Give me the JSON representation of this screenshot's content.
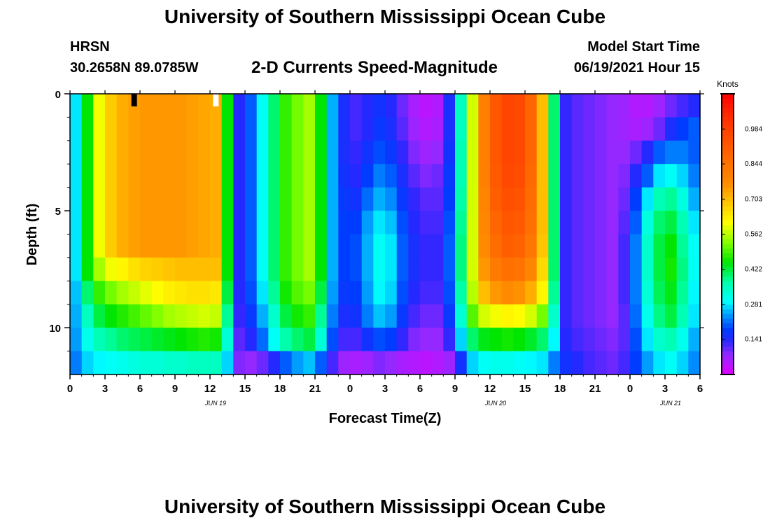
{
  "header": {
    "title": "University of Southern Mississippi Ocean Cube",
    "station": "HRSN",
    "coords": "30.2658N  89.0785W",
    "subtitle": "2-D Currents Speed-Magnitude",
    "model_start_label": "Model Start Time",
    "model_start_value": "06/19/2021 Hour 15"
  },
  "footer": {
    "title": "University of Southern Mississippi Ocean Cube"
  },
  "chart_data": {
    "type": "heatmap",
    "title": "2-D Currents Speed-Magnitude",
    "xlabel": "Forecast Time(Z)",
    "ylabel": "Depth (ft)",
    "x_range": [
      0,
      54
    ],
    "y_range": [
      0,
      12
    ],
    "x_ticks": [
      0,
      3,
      6,
      9,
      12,
      15,
      18,
      21,
      24,
      27,
      30,
      33,
      36,
      39,
      42,
      45,
      48,
      51,
      54
    ],
    "x_tick_labels": [
      "0",
      "3",
      "6",
      "9",
      "12",
      "15",
      "18",
      "21",
      "0",
      "3",
      "6",
      "9",
      "12",
      "15",
      "18",
      "21",
      "0",
      "3",
      "6"
    ],
    "y_ticks": [
      0,
      5,
      10
    ],
    "y_tick_labels": [
      "0",
      "5",
      "10"
    ],
    "date_labels": [
      {
        "hour": 12,
        "text": "JUN 19"
      },
      {
        "hour": 36,
        "text": "JUN 20"
      },
      {
        "hour": 51,
        "text": "JUN 21"
      }
    ],
    "colorbar": {
      "title": "Knots",
      "min": 0.0,
      "max": 1.125,
      "ticks": [
        0.141,
        0.281,
        0.422,
        0.562,
        0.703,
        0.844,
        0.984
      ],
      "tick_labels": [
        "0.141",
        "0.281",
        "0.422",
        "0.562",
        "0.703",
        "0.844",
        "0.984"
      ]
    },
    "depth_levels_ft": [
      0.5,
      1.5,
      2.5,
      3.5,
      4.5,
      5.5,
      6.5,
      7.5,
      8.5,
      9.5,
      10.5,
      11.5
    ],
    "time_hours": [
      0,
      1,
      2,
      3,
      4,
      5,
      6,
      7,
      8,
      9,
      10,
      11,
      12,
      13,
      14,
      15,
      16,
      17,
      18,
      19,
      20,
      21,
      22,
      23,
      24,
      25,
      26,
      27,
      28,
      29,
      30,
      31,
      32,
      33,
      34,
      35,
      36,
      37,
      38,
      39,
      40,
      41,
      42,
      43,
      44,
      45,
      46,
      47,
      48,
      49,
      50,
      51,
      52,
      53
    ],
    "speed_knots": [
      [
        0.28,
        0.45,
        0.6,
        0.68,
        0.72,
        0.74,
        0.75,
        0.75,
        0.75,
        0.75,
        0.74,
        0.73,
        0.72,
        0.45,
        0.14,
        0.2,
        0.3,
        0.4,
        0.48,
        0.52,
        0.55,
        0.45,
        0.25,
        0.15,
        0.12,
        0.14,
        0.16,
        0.14,
        0.1,
        0.06,
        0.04,
        0.05,
        0.15,
        0.35,
        0.58,
        0.8,
        0.92,
        0.97,
        0.96,
        0.88,
        0.7,
        0.4,
        0.13,
        0.11,
        0.1,
        0.09,
        0.08,
        0.07,
        0.05,
        0.05,
        0.07,
        0.1,
        0.12,
        0.14
      ],
      [
        0.28,
        0.45,
        0.6,
        0.68,
        0.72,
        0.74,
        0.75,
        0.75,
        0.75,
        0.75,
        0.74,
        0.73,
        0.72,
        0.45,
        0.14,
        0.2,
        0.3,
        0.4,
        0.48,
        0.52,
        0.55,
        0.45,
        0.25,
        0.15,
        0.12,
        0.14,
        0.17,
        0.15,
        0.11,
        0.07,
        0.05,
        0.06,
        0.15,
        0.35,
        0.58,
        0.8,
        0.92,
        0.97,
        0.96,
        0.88,
        0.7,
        0.4,
        0.13,
        0.11,
        0.1,
        0.09,
        0.08,
        0.07,
        0.06,
        0.07,
        0.1,
        0.15,
        0.18,
        0.2
      ],
      [
        0.28,
        0.45,
        0.6,
        0.68,
        0.72,
        0.74,
        0.75,
        0.75,
        0.75,
        0.75,
        0.74,
        0.73,
        0.72,
        0.45,
        0.14,
        0.2,
        0.3,
        0.4,
        0.48,
        0.52,
        0.55,
        0.45,
        0.25,
        0.15,
        0.13,
        0.16,
        0.19,
        0.17,
        0.13,
        0.09,
        0.07,
        0.08,
        0.16,
        0.36,
        0.58,
        0.8,
        0.92,
        0.97,
        0.96,
        0.88,
        0.7,
        0.4,
        0.13,
        0.11,
        0.1,
        0.09,
        0.08,
        0.08,
        0.1,
        0.14,
        0.2,
        0.22,
        0.22,
        0.2
      ],
      [
        0.28,
        0.45,
        0.6,
        0.68,
        0.72,
        0.74,
        0.75,
        0.75,
        0.75,
        0.75,
        0.74,
        0.73,
        0.72,
        0.45,
        0.14,
        0.2,
        0.3,
        0.4,
        0.48,
        0.52,
        0.55,
        0.45,
        0.25,
        0.16,
        0.14,
        0.18,
        0.22,
        0.2,
        0.15,
        0.11,
        0.09,
        0.1,
        0.17,
        0.36,
        0.58,
        0.8,
        0.91,
        0.96,
        0.95,
        0.87,
        0.7,
        0.4,
        0.13,
        0.11,
        0.1,
        0.09,
        0.08,
        0.09,
        0.14,
        0.2,
        0.28,
        0.3,
        0.27,
        0.22
      ],
      [
        0.28,
        0.45,
        0.6,
        0.68,
        0.72,
        0.74,
        0.75,
        0.75,
        0.75,
        0.75,
        0.74,
        0.73,
        0.72,
        0.45,
        0.14,
        0.2,
        0.3,
        0.4,
        0.48,
        0.52,
        0.55,
        0.45,
        0.25,
        0.17,
        0.16,
        0.21,
        0.25,
        0.23,
        0.17,
        0.13,
        0.11,
        0.11,
        0.18,
        0.37,
        0.58,
        0.79,
        0.9,
        0.94,
        0.93,
        0.86,
        0.7,
        0.4,
        0.13,
        0.11,
        0.1,
        0.09,
        0.08,
        0.1,
        0.18,
        0.28,
        0.36,
        0.38,
        0.32,
        0.25
      ],
      [
        0.28,
        0.45,
        0.6,
        0.68,
        0.72,
        0.74,
        0.75,
        0.75,
        0.75,
        0.75,
        0.74,
        0.73,
        0.72,
        0.45,
        0.14,
        0.2,
        0.3,
        0.4,
        0.48,
        0.52,
        0.55,
        0.45,
        0.25,
        0.18,
        0.18,
        0.24,
        0.28,
        0.26,
        0.19,
        0.14,
        0.12,
        0.12,
        0.19,
        0.38,
        0.58,
        0.78,
        0.88,
        0.92,
        0.91,
        0.85,
        0.7,
        0.4,
        0.13,
        0.11,
        0.1,
        0.09,
        0.08,
        0.11,
        0.2,
        0.32,
        0.4,
        0.42,
        0.36,
        0.28
      ],
      [
        0.28,
        0.45,
        0.6,
        0.68,
        0.72,
        0.74,
        0.75,
        0.75,
        0.75,
        0.75,
        0.74,
        0.73,
        0.72,
        0.45,
        0.14,
        0.2,
        0.3,
        0.4,
        0.48,
        0.52,
        0.55,
        0.45,
        0.25,
        0.18,
        0.19,
        0.25,
        0.3,
        0.28,
        0.2,
        0.15,
        0.13,
        0.13,
        0.2,
        0.39,
        0.58,
        0.77,
        0.86,
        0.9,
        0.89,
        0.83,
        0.69,
        0.4,
        0.13,
        0.11,
        0.1,
        0.09,
        0.08,
        0.12,
        0.22,
        0.34,
        0.42,
        0.45,
        0.38,
        0.3
      ],
      [
        0.28,
        0.45,
        0.55,
        0.6,
        0.62,
        0.65,
        0.67,
        0.68,
        0.69,
        0.7,
        0.7,
        0.7,
        0.7,
        0.45,
        0.14,
        0.2,
        0.3,
        0.4,
        0.48,
        0.52,
        0.55,
        0.45,
        0.25,
        0.18,
        0.19,
        0.25,
        0.3,
        0.28,
        0.2,
        0.15,
        0.13,
        0.13,
        0.2,
        0.39,
        0.58,
        0.75,
        0.82,
        0.85,
        0.84,
        0.79,
        0.66,
        0.4,
        0.13,
        0.11,
        0.1,
        0.09,
        0.08,
        0.12,
        0.22,
        0.34,
        0.42,
        0.46,
        0.39,
        0.3
      ],
      [
        0.26,
        0.4,
        0.48,
        0.52,
        0.55,
        0.57,
        0.59,
        0.61,
        0.63,
        0.64,
        0.65,
        0.65,
        0.64,
        0.42,
        0.14,
        0.19,
        0.28,
        0.38,
        0.46,
        0.5,
        0.52,
        0.42,
        0.24,
        0.17,
        0.18,
        0.24,
        0.29,
        0.27,
        0.19,
        0.14,
        0.12,
        0.12,
        0.19,
        0.37,
        0.56,
        0.7,
        0.75,
        0.77,
        0.76,
        0.72,
        0.62,
        0.38,
        0.13,
        0.11,
        0.1,
        0.09,
        0.08,
        0.12,
        0.22,
        0.33,
        0.41,
        0.44,
        0.38,
        0.29
      ],
      [
        0.25,
        0.35,
        0.42,
        0.45,
        0.47,
        0.49,
        0.51,
        0.53,
        0.55,
        0.56,
        0.57,
        0.58,
        0.57,
        0.38,
        0.13,
        0.17,
        0.25,
        0.34,
        0.42,
        0.46,
        0.48,
        0.38,
        0.22,
        0.15,
        0.16,
        0.22,
        0.26,
        0.24,
        0.17,
        0.12,
        0.1,
        0.1,
        0.17,
        0.33,
        0.5,
        0.58,
        0.6,
        0.62,
        0.61,
        0.58,
        0.52,
        0.34,
        0.13,
        0.11,
        0.1,
        0.09,
        0.08,
        0.11,
        0.21,
        0.31,
        0.39,
        0.42,
        0.36,
        0.28
      ],
      [
        0.24,
        0.31,
        0.36,
        0.38,
        0.4,
        0.41,
        0.42,
        0.43,
        0.44,
        0.45,
        0.46,
        0.47,
        0.46,
        0.33,
        0.11,
        0.14,
        0.21,
        0.3,
        0.37,
        0.4,
        0.42,
        0.33,
        0.19,
        0.12,
        0.12,
        0.16,
        0.19,
        0.18,
        0.13,
        0.09,
        0.08,
        0.08,
        0.13,
        0.27,
        0.4,
        0.44,
        0.45,
        0.46,
        0.45,
        0.43,
        0.4,
        0.29,
        0.14,
        0.12,
        0.11,
        0.1,
        0.09,
        0.11,
        0.19,
        0.28,
        0.34,
        0.36,
        0.31,
        0.25
      ],
      [
        0.22,
        0.27,
        0.29,
        0.3,
        0.31,
        0.32,
        0.33,
        0.33,
        0.34,
        0.34,
        0.35,
        0.35,
        0.35,
        0.27,
        0.09,
        0.08,
        0.1,
        0.14,
        0.2,
        0.24,
        0.26,
        0.2,
        0.12,
        0.07,
        0.06,
        0.07,
        0.09,
        0.08,
        0.06,
        0.05,
        0.04,
        0.05,
        0.07,
        0.16,
        0.27,
        0.3,
        0.31,
        0.31,
        0.3,
        0.29,
        0.28,
        0.22,
        0.16,
        0.14,
        0.12,
        0.11,
        0.1,
        0.12,
        0.18,
        0.24,
        0.28,
        0.3,
        0.27,
        0.23
      ]
    ],
    "surface_markers": [
      {
        "hour": 5.5,
        "color": "#000000"
      },
      {
        "hour": 12.5,
        "color": "#ffffff"
      }
    ]
  }
}
